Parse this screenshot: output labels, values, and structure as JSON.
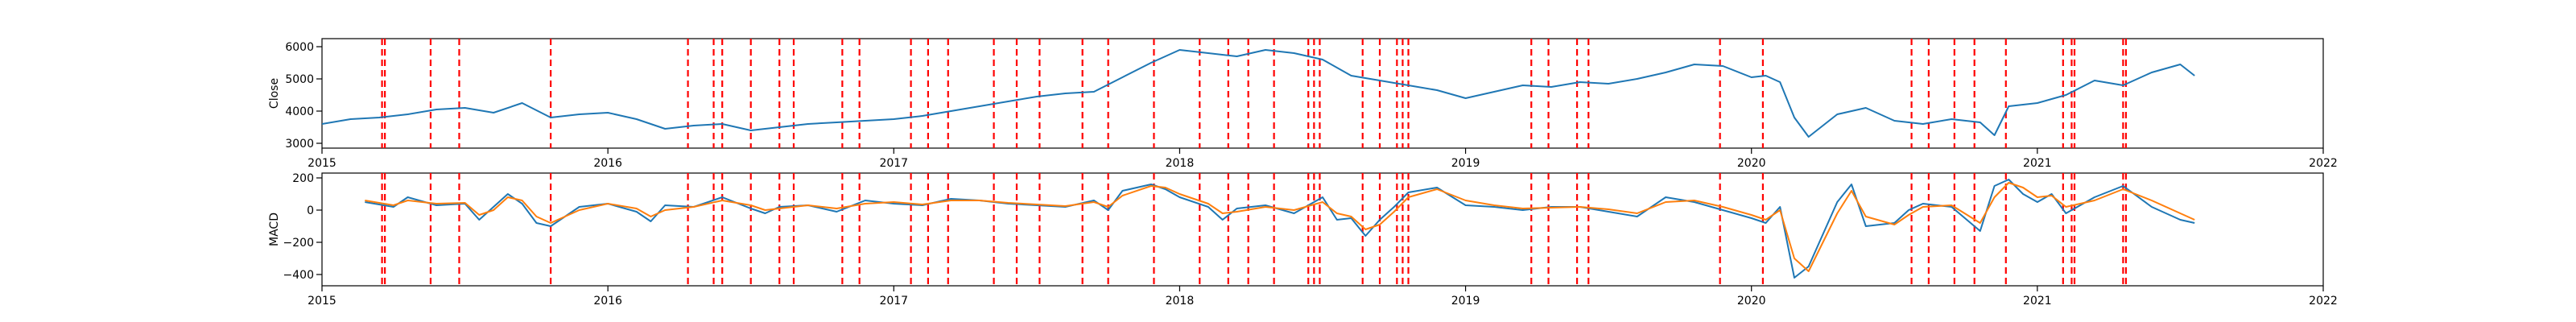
{
  "chart_data": [
    {
      "type": "line",
      "ylabel": "Close",
      "xlabel": "",
      "title": "",
      "xlim": [
        2015.0,
        2022.0
      ],
      "ylim": [
        2850,
        6250
      ],
      "x_ticks": [
        {
          "value": 2015,
          "label": "2015"
        },
        {
          "value": 2016,
          "label": "2016"
        },
        {
          "value": 2017,
          "label": "2017"
        },
        {
          "value": 2018,
          "label": "2018"
        },
        {
          "value": 2019,
          "label": "2019"
        },
        {
          "value": 2020,
          "label": "2020"
        },
        {
          "value": 2021,
          "label": "2021"
        },
        {
          "value": 2022,
          "label": "2022"
        }
      ],
      "y_ticks": [
        {
          "value": 3000,
          "label": "3000"
        },
        {
          "value": 4000,
          "label": "4000"
        },
        {
          "value": 5000,
          "label": "5000"
        },
        {
          "value": 6000,
          "label": "6000"
        }
      ],
      "colors": {
        "series": "#1f77b4",
        "signal_lines": "#ff0000"
      },
      "series": [
        {
          "x": [
            2015.0,
            2015.1,
            2015.2,
            2015.3,
            2015.4,
            2015.5,
            2015.6,
            2015.7,
            2015.8,
            2015.9,
            2016.0,
            2016.1,
            2016.2,
            2016.3,
            2016.4,
            2016.5,
            2016.6,
            2016.7,
            2016.8,
            2016.9,
            2017.0,
            2017.1,
            2017.2,
            2017.3,
            2017.4,
            2017.5,
            2017.6,
            2017.7,
            2017.8,
            2017.9,
            2018.0,
            2018.1,
            2018.2,
            2018.3,
            2018.4,
            2018.5,
            2018.6,
            2018.7,
            2018.8,
            2018.9,
            2019.0,
            2019.1,
            2019.2,
            2019.3,
            2019.4,
            2019.5,
            2019.6,
            2019.7,
            2019.8,
            2019.9,
            2020.0,
            2020.05,
            2020.1,
            2020.15,
            2020.2,
            2020.3,
            2020.4,
            2020.5,
            2020.6,
            2020.7,
            2020.8,
            2020.85,
            2020.9,
            2021.0,
            2021.1,
            2021.2,
            2021.3,
            2021.4,
            2021.5,
            2021.55
          ],
          "values": [
            3600,
            3750,
            3800,
            3900,
            4050,
            4100,
            3950,
            4250,
            3800,
            3900,
            3950,
            3750,
            3450,
            3550,
            3600,
            3400,
            3500,
            3600,
            3650,
            3700,
            3750,
            3850,
            4000,
            4150,
            4300,
            4450,
            4550,
            4600,
            5050,
            5500,
            5900,
            5800,
            5700,
            5900,
            5800,
            5600,
            5100,
            4950,
            4800,
            4650,
            4400,
            4600,
            4800,
            4750,
            4900,
            4850,
            5000,
            5200,
            5450,
            5400,
            5050,
            5100,
            4900,
            3800,
            3200,
            3900,
            4100,
            3700,
            3600,
            3750,
            3650,
            3250,
            4150,
            4250,
            4500,
            4950,
            4800,
            5200,
            5450,
            5100
          ]
        }
      ],
      "signal_lines_x": [
        2015.21,
        2015.22,
        2015.38,
        2015.48,
        2015.8,
        2016.28,
        2016.37,
        2016.4,
        2016.5,
        2016.6,
        2016.65,
        2016.82,
        2016.88,
        2017.06,
        2017.12,
        2017.19,
        2017.35,
        2017.43,
        2017.51,
        2017.66,
        2017.75,
        2017.91,
        2018.07,
        2018.17,
        2018.24,
        2018.33,
        2018.45,
        2018.47,
        2018.49,
        2018.64,
        2018.7,
        2018.76,
        2018.78,
        2018.8,
        2019.23,
        2019.29,
        2019.39,
        2019.43,
        2019.89,
        2020.04,
        2020.56,
        2020.62,
        2020.71,
        2020.78,
        2020.89,
        2021.09,
        2021.12,
        2021.13,
        2021.3,
        2021.31
      ]
    },
    {
      "type": "line",
      "ylabel": "MACD",
      "xlabel": "",
      "title": "",
      "xlim": [
        2015.0,
        2022.0
      ],
      "ylim": [
        -470,
        230
      ],
      "x_ticks": [
        {
          "value": 2015,
          "label": "2015"
        },
        {
          "value": 2016,
          "label": "2016"
        },
        {
          "value": 2017,
          "label": "2017"
        },
        {
          "value": 2018,
          "label": "2018"
        },
        {
          "value": 2019,
          "label": "2019"
        },
        {
          "value": 2020,
          "label": "2020"
        },
        {
          "value": 2021,
          "label": "2021"
        },
        {
          "value": 2022,
          "label": "2022"
        }
      ],
      "y_ticks": [
        {
          "value": 200,
          "label": "200"
        },
        {
          "value": 0,
          "label": "0"
        },
        {
          "value": -200,
          "label": "−200"
        },
        {
          "value": -400,
          "label": "−400"
        }
      ],
      "colors": {
        "macd": "#1f77b4",
        "signal": "#ff7f0e",
        "signal_lines": "#ff0000"
      },
      "series": [
        {
          "x": [
            2015.15,
            2015.25,
            2015.3,
            2015.4,
            2015.5,
            2015.55,
            2015.6,
            2015.65,
            2015.7,
            2015.75,
            2015.8,
            2015.9,
            2016.0,
            2016.1,
            2016.15,
            2016.2,
            2016.3,
            2016.4,
            2016.5,
            2016.55,
            2016.6,
            2016.7,
            2016.8,
            2016.9,
            2017.0,
            2017.1,
            2017.2,
            2017.3,
            2017.4,
            2017.5,
            2017.6,
            2017.7,
            2017.75,
            2017.8,
            2017.9,
            2017.95,
            2018.0,
            2018.1,
            2018.15,
            2018.2,
            2018.3,
            2018.4,
            2018.5,
            2018.55,
            2018.6,
            2018.65,
            2018.7,
            2018.75,
            2018.8,
            2018.9,
            2019.0,
            2019.1,
            2019.2,
            2019.3,
            2019.4,
            2019.5,
            2019.6,
            2019.7,
            2019.8,
            2019.9,
            2020.0,
            2020.05,
            2020.1,
            2020.15,
            2020.2,
            2020.3,
            2020.35,
            2020.4,
            2020.5,
            2020.55,
            2020.6,
            2020.7,
            2020.8,
            2020.85,
            2020.9,
            2020.95,
            2021.0,
            2021.05,
            2021.1,
            2021.2,
            2021.3,
            2021.4,
            2021.5,
            2021.55
          ],
          "values": [
            50,
            20,
            80,
            30,
            40,
            -60,
            20,
            100,
            40,
            -80,
            -100,
            20,
            40,
            -10,
            -70,
            30,
            20,
            80,
            10,
            -20,
            20,
            30,
            -10,
            60,
            40,
            30,
            70,
            60,
            40,
            30,
            20,
            60,
            0,
            120,
            160,
            130,
            80,
            20,
            -60,
            10,
            30,
            -20,
            80,
            -60,
            -50,
            -160,
            -60,
            20,
            110,
            140,
            30,
            20,
            0,
            20,
            20,
            -10,
            -40,
            80,
            50,
            0,
            -50,
            -80,
            20,
            -420,
            -350,
            50,
            160,
            -100,
            -80,
            0,
            40,
            20,
            -130,
            150,
            190,
            100,
            50,
            100,
            -20,
            80,
            150,
            20,
            -60,
            -80
          ]
        },
        {
          "x": [
            2015.15,
            2015.25,
            2015.3,
            2015.4,
            2015.5,
            2015.55,
            2015.6,
            2015.65,
            2015.7,
            2015.75,
            2015.8,
            2015.9,
            2016.0,
            2016.1,
            2016.15,
            2016.2,
            2016.3,
            2016.4,
            2016.5,
            2016.55,
            2016.6,
            2016.7,
            2016.8,
            2016.9,
            2017.0,
            2017.1,
            2017.2,
            2017.3,
            2017.4,
            2017.5,
            2017.6,
            2017.7,
            2017.75,
            2017.8,
            2017.9,
            2017.95,
            2018.0,
            2018.1,
            2018.15,
            2018.2,
            2018.3,
            2018.4,
            2018.5,
            2018.55,
            2018.6,
            2018.65,
            2018.7,
            2018.75,
            2018.8,
            2018.9,
            2019.0,
            2019.1,
            2019.2,
            2019.3,
            2019.4,
            2019.5,
            2019.6,
            2019.7,
            2019.8,
            2019.9,
            2020.0,
            2020.05,
            2020.1,
            2020.15,
            2020.2,
            2020.3,
            2020.35,
            2020.4,
            2020.5,
            2020.55,
            2020.6,
            2020.7,
            2020.8,
            2020.85,
            2020.9,
            2020.95,
            2021.0,
            2021.05,
            2021.1,
            2021.2,
            2021.3,
            2021.4,
            2021.5,
            2021.55
          ],
          "values": [
            60,
            30,
            60,
            40,
            45,
            -30,
            0,
            80,
            60,
            -40,
            -80,
            0,
            40,
            10,
            -40,
            0,
            20,
            60,
            30,
            0,
            10,
            30,
            10,
            40,
            50,
            35,
            60,
            60,
            45,
            35,
            25,
            50,
            20,
            90,
            150,
            140,
            100,
            40,
            -20,
            -10,
            20,
            0,
            50,
            -20,
            -40,
            -120,
            -90,
            -10,
            80,
            130,
            60,
            30,
            10,
            15,
            20,
            5,
            -20,
            50,
            60,
            20,
            -30,
            -60,
            0,
            -300,
            -380,
            -20,
            120,
            -40,
            -90,
            -30,
            20,
            30,
            -80,
            80,
            170,
            140,
            80,
            90,
            20,
            60,
            130,
            60,
            -20,
            -60
          ]
        }
      ],
      "signal_lines_x": [
        2015.21,
        2015.22,
        2015.38,
        2015.48,
        2015.8,
        2016.28,
        2016.37,
        2016.4,
        2016.5,
        2016.6,
        2016.65,
        2016.82,
        2016.88,
        2017.06,
        2017.12,
        2017.19,
        2017.35,
        2017.43,
        2017.51,
        2017.66,
        2017.75,
        2017.91,
        2018.07,
        2018.17,
        2018.24,
        2018.33,
        2018.45,
        2018.47,
        2018.49,
        2018.64,
        2018.7,
        2018.76,
        2018.78,
        2018.8,
        2019.23,
        2019.29,
        2019.39,
        2019.43,
        2019.89,
        2020.04,
        2020.56,
        2020.62,
        2020.71,
        2020.78,
        2020.89,
        2021.09,
        2021.12,
        2021.13,
        2021.3,
        2021.31
      ]
    }
  ]
}
